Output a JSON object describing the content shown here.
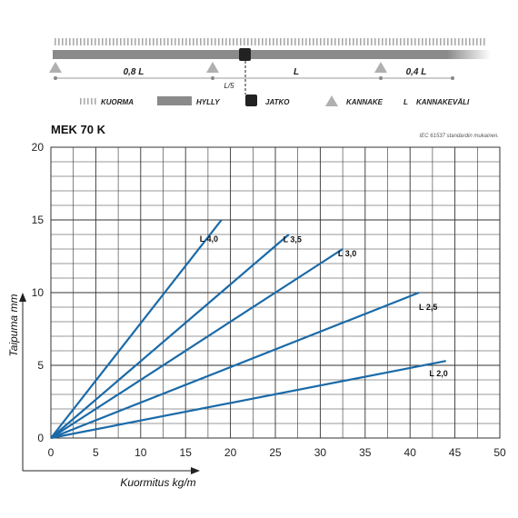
{
  "diagram": {
    "span_labels": [
      "0,8 L",
      "L",
      "0,4 L"
    ],
    "joint_label": "L/5",
    "legend": [
      {
        "key": "load",
        "label": "KUORMA"
      },
      {
        "key": "shelf",
        "label": "HYLLY"
      },
      {
        "key": "joint",
        "label": "JATKO"
      },
      {
        "key": "support",
        "label": "KANNAKE"
      },
      {
        "key": "span",
        "symbol": "L",
        "label": "KANNAKEVÄLI"
      }
    ],
    "colors": {
      "shelf": "#8a8a8a",
      "joint": "#222222",
      "support": "#b0b0b0",
      "load": "#aaaaaa"
    }
  },
  "chart_data": {
    "type": "line",
    "title": "MEK 70 K",
    "subtitle": "IEC 61537 standardin mukainen.",
    "xlabel": "Kuormitus kg/m",
    "ylabel": "Taipuma mm",
    "xlim": [
      0,
      50
    ],
    "ylim": [
      0,
      20
    ],
    "x_ticks": [
      "0",
      "5",
      "10",
      "15",
      "20",
      "25",
      "30",
      "35",
      "40",
      "45",
      "50"
    ],
    "y_ticks": [
      "0",
      "5",
      "10",
      "15",
      "20"
    ],
    "grid": true,
    "line_color": "#1a6aa8",
    "series": [
      {
        "name": "L 4,0",
        "x": [
          0,
          19
        ],
        "y": [
          0,
          15
        ]
      },
      {
        "name": "L 3,5",
        "x": [
          0,
          26.5
        ],
        "y": [
          0,
          14
        ]
      },
      {
        "name": "L 3,0",
        "x": [
          0,
          32.5
        ],
        "y": [
          0,
          13
        ]
      },
      {
        "name": "L 2,5",
        "x": [
          0,
          41
        ],
        "y": [
          0,
          10
        ]
      },
      {
        "name": "L 2,0",
        "x": [
          0,
          44
        ],
        "y": [
          0,
          5.3
        ]
      }
    ]
  }
}
